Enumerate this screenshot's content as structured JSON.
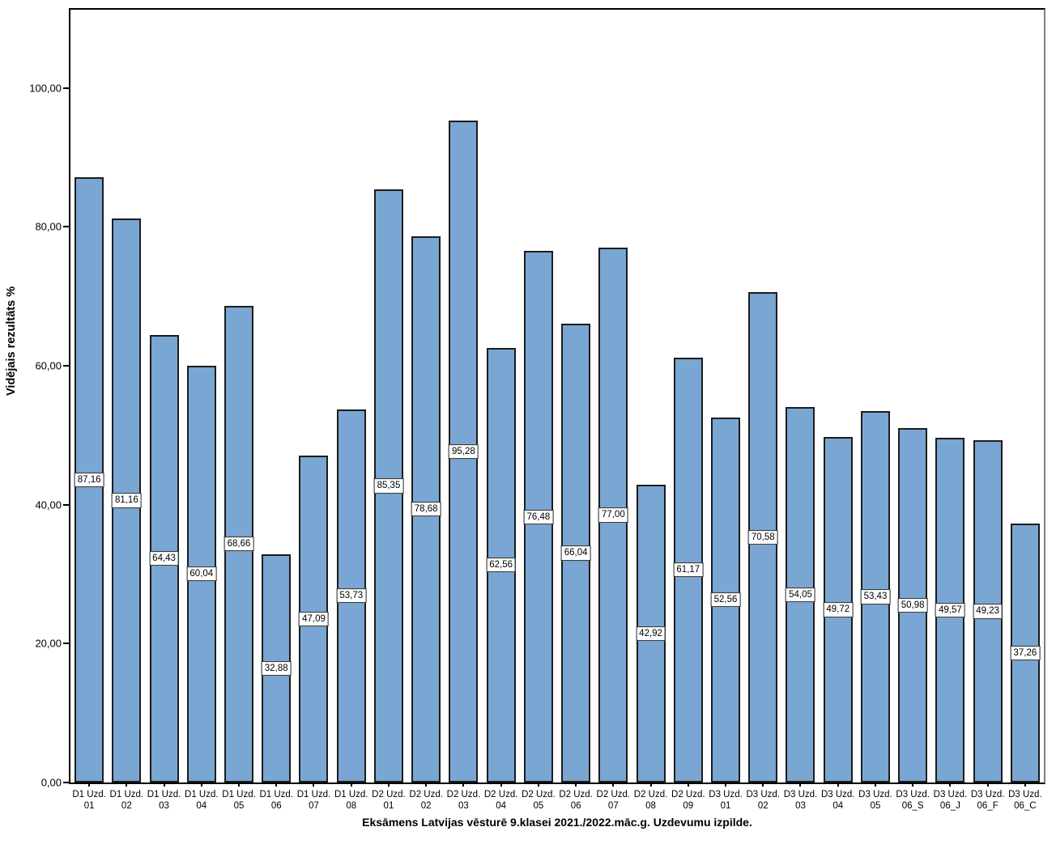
{
  "chart_data": {
    "type": "bar",
    "title": "",
    "xlabel": "Eksāmens Latvijas vēsturē 9.klasei 2021./2022.māc.g. Uzdevumu izpilde.",
    "ylabel": "Vidējais rezultāts %",
    "ylim": [
      0,
      111.25
    ],
    "grid": false,
    "legend": "none",
    "bar_color": "#79A6D2",
    "bar_border_color": "#1c1c1c",
    "yticks": [
      {
        "value": 0,
        "label": "0,00"
      },
      {
        "value": 20,
        "label": "20,00"
      },
      {
        "value": 40,
        "label": "40,00"
      },
      {
        "value": 60,
        "label": "60,00"
      },
      {
        "value": 80,
        "label": "80,00"
      },
      {
        "value": 100,
        "label": "100,00"
      }
    ],
    "categories": [
      {
        "line1": "D1 Uzd.",
        "line2": "01"
      },
      {
        "line1": "D1 Uzd.",
        "line2": "02"
      },
      {
        "line1": "D1 Uzd.",
        "line2": "03"
      },
      {
        "line1": "D1 Uzd.",
        "line2": "04"
      },
      {
        "line1": "D1 Uzd.",
        "line2": "05"
      },
      {
        "line1": "D1 Uzd.",
        "line2": "06"
      },
      {
        "line1": "D1 Uzd.",
        "line2": "07"
      },
      {
        "line1": "D1 Uzd.",
        "line2": "08"
      },
      {
        "line1": "D2 Uzd.",
        "line2": "01"
      },
      {
        "line1": "D2 Uzd.",
        "line2": "02"
      },
      {
        "line1": "D2 Uzd.",
        "line2": "03"
      },
      {
        "line1": "D2 Uzd.",
        "line2": "04"
      },
      {
        "line1": "D2 Uzd.",
        "line2": "05"
      },
      {
        "line1": "D2 Uzd.",
        "line2": "06"
      },
      {
        "line1": "D2 Uzd.",
        "line2": "07"
      },
      {
        "line1": "D2 Uzd.",
        "line2": "08"
      },
      {
        "line1": "D2 Uzd.",
        "line2": "09"
      },
      {
        "line1": "D3 Uzd.",
        "line2": "01"
      },
      {
        "line1": "D3 Uzd.",
        "line2": "02"
      },
      {
        "line1": "D3 Uzd.",
        "line2": "03"
      },
      {
        "line1": "D3 Uzd.",
        "line2": "04"
      },
      {
        "line1": "D3 Uzd.",
        "line2": "05"
      },
      {
        "line1": "D3 Uzd.",
        "line2": "06_S"
      },
      {
        "line1": "D3 Uzd.",
        "line2": "06_J"
      },
      {
        "line1": "D3 Uzd.",
        "line2": "06_F"
      },
      {
        "line1": "D3 Uzd.",
        "line2": "06_C"
      }
    ],
    "values": [
      87.16,
      81.16,
      64.43,
      60.04,
      68.66,
      32.88,
      47.09,
      53.73,
      85.35,
      78.68,
      95.28,
      62.56,
      76.48,
      66.04,
      77.0,
      42.92,
      61.17,
      52.56,
      70.58,
      54.05,
      49.72,
      53.43,
      50.98,
      49.57,
      49.23,
      37.26
    ],
    "value_labels": [
      "87,16",
      "81,16",
      "64,43",
      "60,04",
      "68,66",
      "32,88",
      "47,09",
      "53,73",
      "85,35",
      "78,68",
      "95,28",
      "62,56",
      "76,48",
      "66,04",
      "77,00",
      "42,92",
      "61,17",
      "52,56",
      "70,58",
      "54,05",
      "49,72",
      "53,43",
      "50,98",
      "49,57",
      "49,23",
      "37,26"
    ]
  }
}
